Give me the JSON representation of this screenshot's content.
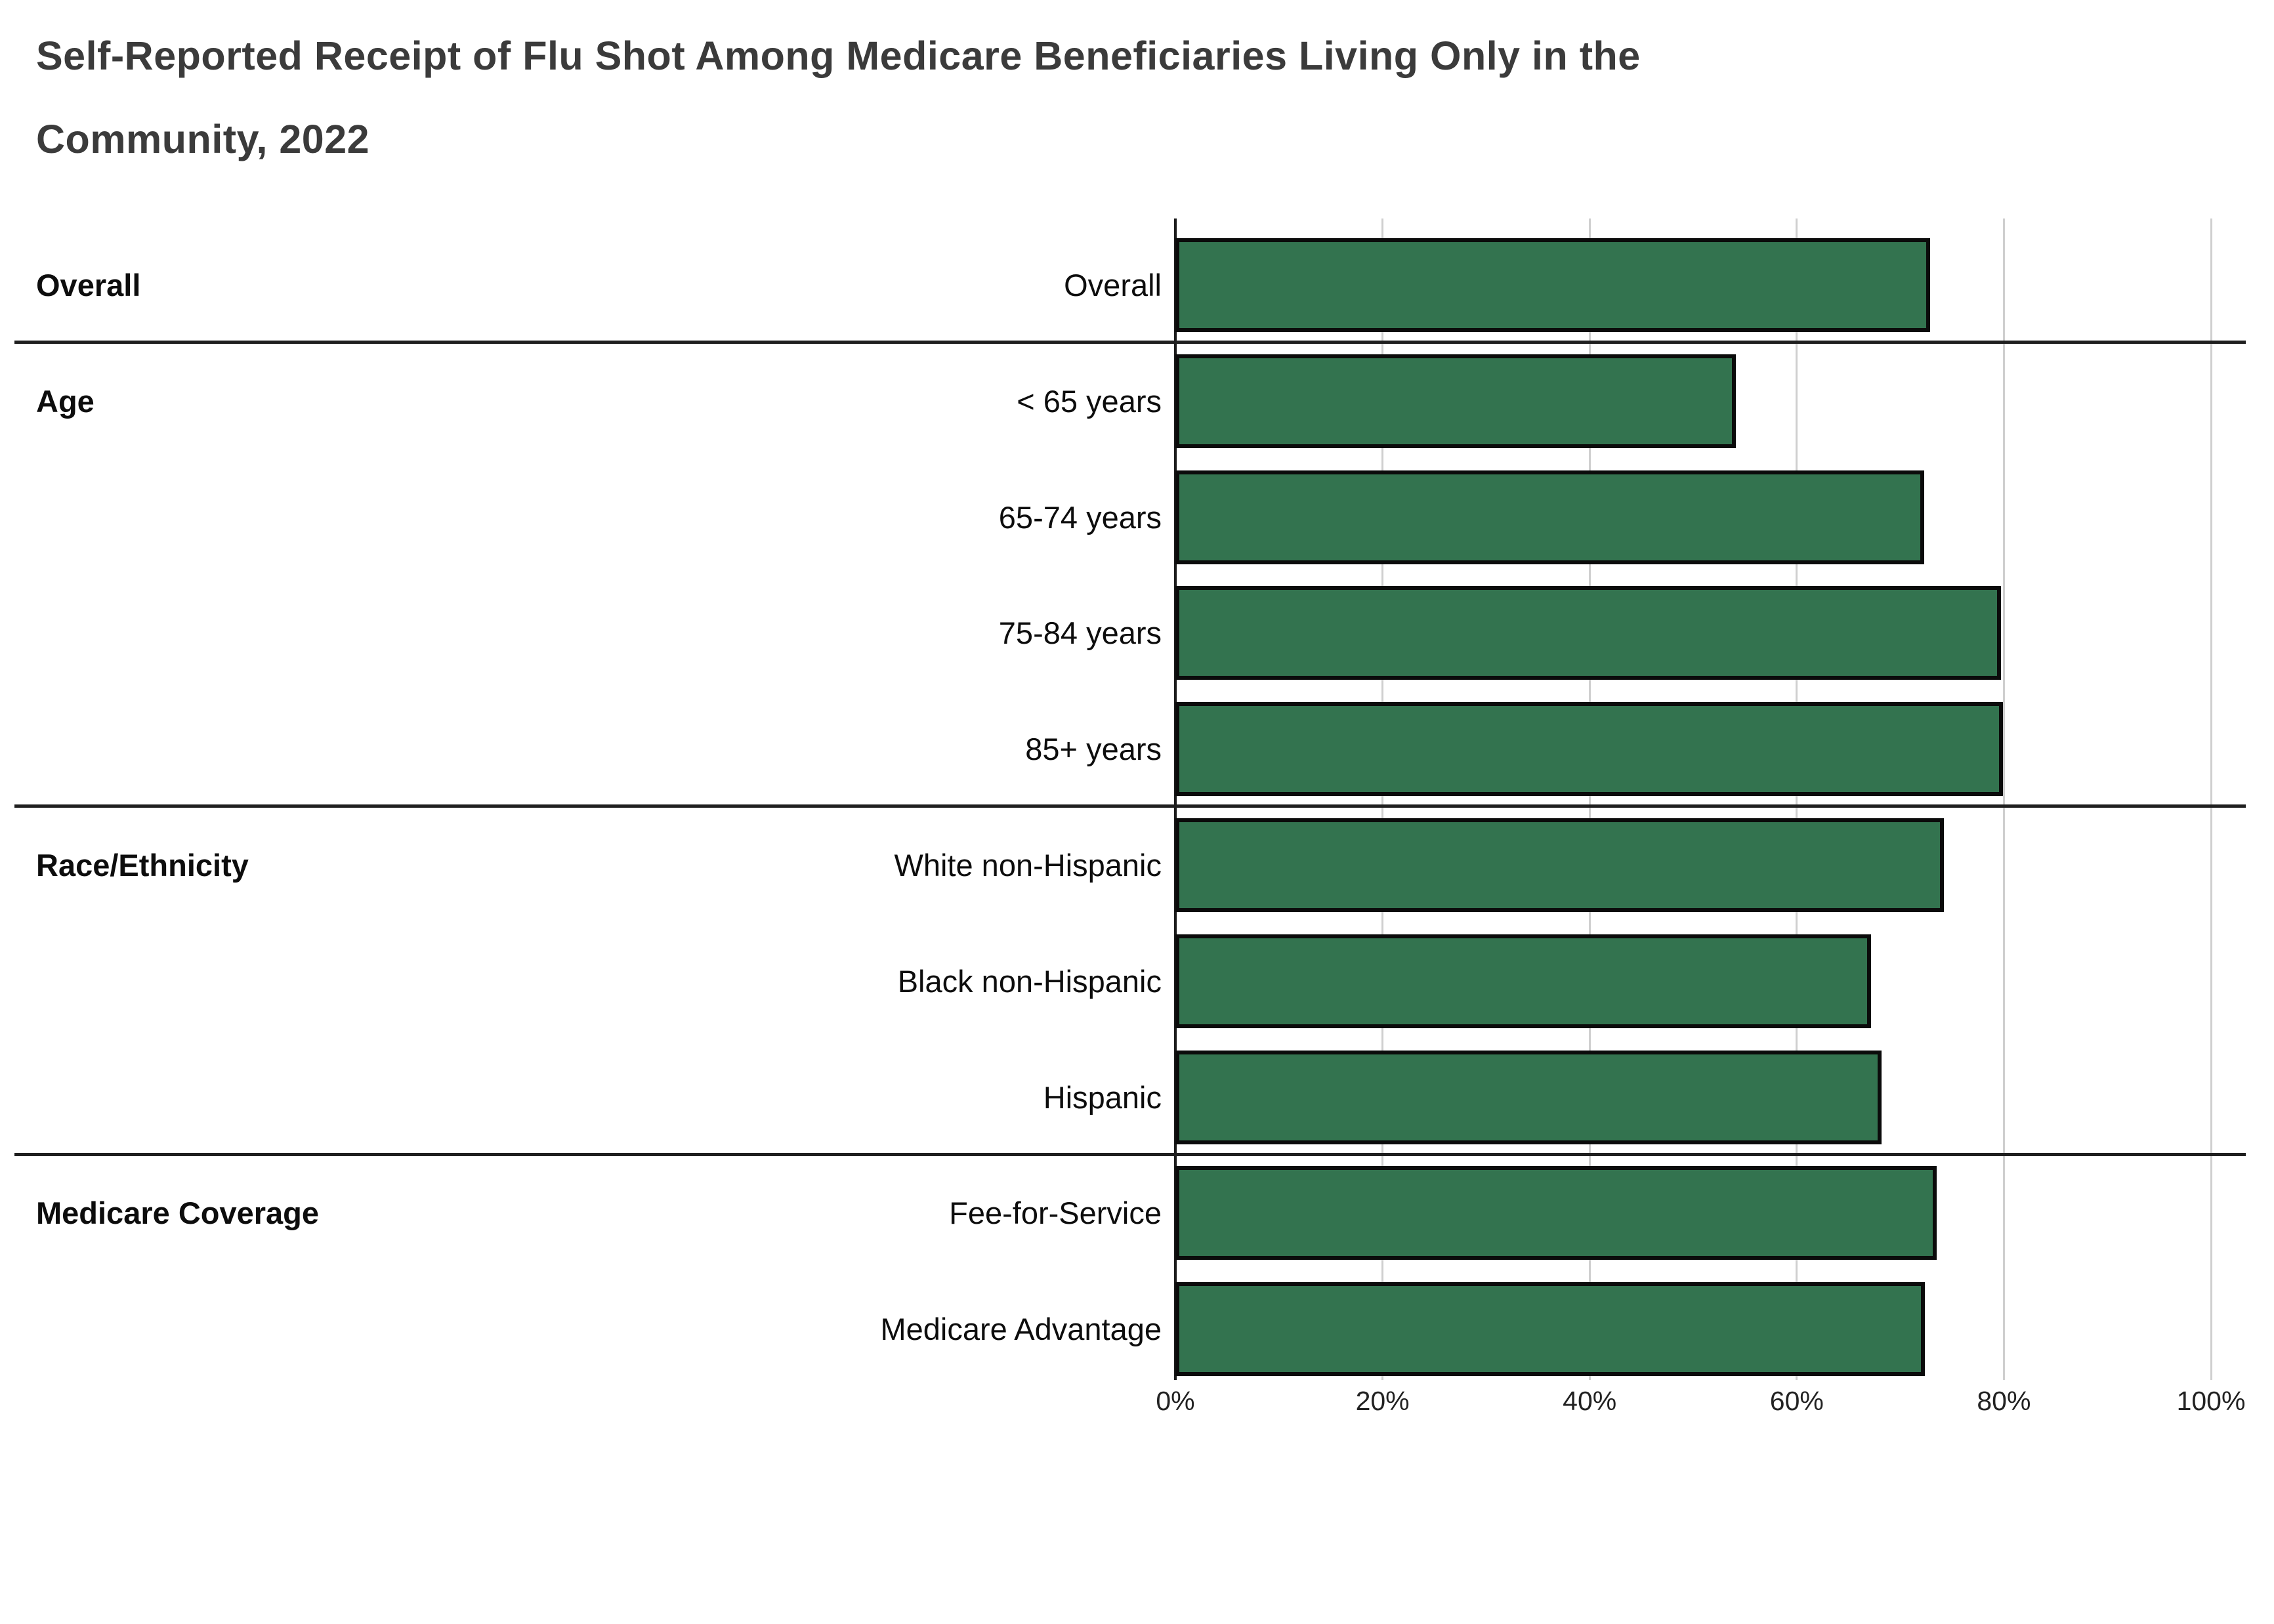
{
  "header": {
    "title_lines": [
      "Self-Reported Receipt of Flu Shot Among Medicare Beneficiaries Living Only in the",
      "Community, 2022"
    ]
  },
  "chart_data": {
    "type": "bar",
    "orientation": "horizontal",
    "title": "Self-Reported Receipt of Flu Shot Among Medicare Beneficiaries Living Only in the Community, 2022",
    "value_unit": "%",
    "xlim": [
      0,
      100
    ],
    "x_tick_values": [
      0,
      20,
      40,
      60,
      80,
      100
    ],
    "x_tick_labels": [
      "0%",
      "20%",
      "40%",
      "60%",
      "80%",
      "100%"
    ],
    "grid": true,
    "legend": "none",
    "bar_color": "#33734F",
    "bar_border_color": "#0B0B0B",
    "sections": [
      {
        "label": "Overall",
        "rows": [
          {
            "label": "Overall",
            "value": 72.9
          }
        ]
      },
      {
        "label": "Age",
        "rows": [
          {
            "label": "< 65 years",
            "value": 54.1
          },
          {
            "label": "65-74 years",
            "value": 72.3
          },
          {
            "label": "75-84 years",
            "value": 79.7
          },
          {
            "label": "85+ years",
            "value": 79.9
          }
        ]
      },
      {
        "label": "Race/Ethnicity",
        "rows": [
          {
            "label": "White non-Hispanic",
            "value": 74.2
          },
          {
            "label": "Black non-Hispanic",
            "value": 67.2
          },
          {
            "label": "Hispanic",
            "value": 68.2
          }
        ]
      },
      {
        "label": "Medicare Coverage",
        "rows": [
          {
            "label": "Fee-for-Service",
            "value": 73.5
          },
          {
            "label": "Medicare Advantage",
            "value": 72.4
          }
        ]
      }
    ]
  }
}
